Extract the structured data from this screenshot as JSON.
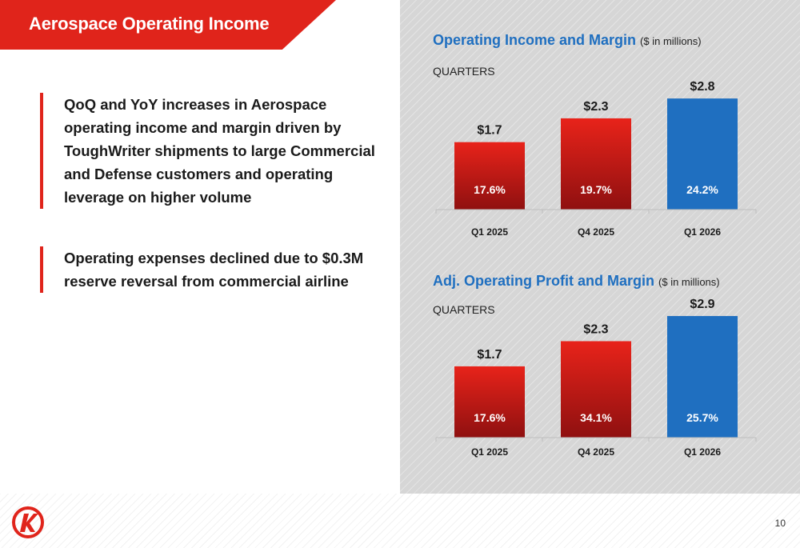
{
  "header": {
    "title": "Aerospace Operating Income"
  },
  "bullets": [
    "QoQ and YoY increases in Aerospace operating income and margin driven by ToughWriter shipments to large Commercial and Defense customers and operating leverage on higher volume",
    "Operating expenses declined due to $0.3M reserve reversal from commercial airline"
  ],
  "footer": {
    "page_number": "10"
  },
  "colors": {
    "brand_red": "#e0241b",
    "current_blue": "#1f6fc0",
    "bar_red_top": "#e8231a",
    "bar_red_bottom": "#8f1010",
    "bar_blue": "#1f6fc0"
  },
  "chart_data": [
    {
      "type": "bar",
      "title": "Operating Income and Margin",
      "units": "($ in millions)",
      "period_label": "QUARTERS",
      "categories": [
        "Q1 2025",
        "Q4 2025",
        "Q1 2026"
      ],
      "values": [
        1.7,
        2.3,
        2.8
      ],
      "value_labels": [
        "$1.7",
        "$2.3",
        "$2.8"
      ],
      "margin_labels": [
        "17.6%",
        "19.7%",
        "24.2%"
      ],
      "highlight_index": 2
    },
    {
      "type": "bar",
      "title": "Adj. Operating Profit and Margin",
      "units": "($ in millions)",
      "period_label": "QUARTERS",
      "categories": [
        "Q1 2025",
        "Q4 2025",
        "Q1 2026"
      ],
      "values": [
        1.7,
        2.3,
        2.9
      ],
      "value_labels": [
        "$1.7",
        "$2.3",
        "$2.9"
      ],
      "margin_labels": [
        "17.6%",
        "34.1%",
        "25.7%"
      ],
      "highlight_index": 2
    }
  ]
}
